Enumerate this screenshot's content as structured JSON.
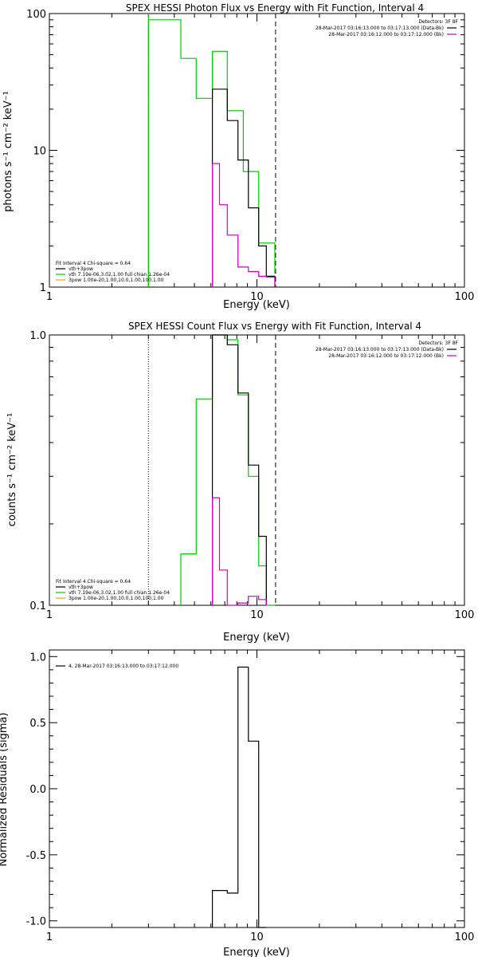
{
  "chart_data": [
    {
      "type": "line",
      "title": "SPEX HESSI Photon Flux vs Energy with Fit Function, Interval 4",
      "xlabel": "Energy (keV)",
      "ylabel": "photons s⁻¹ cm⁻² keV⁻¹",
      "xscale": "log",
      "yscale": "log",
      "xlim": [
        1,
        100
      ],
      "ylim": [
        1,
        100
      ],
      "x_ticks": [
        {
          "value": 1,
          "label": "1"
        },
        {
          "value": 10,
          "label": "10"
        },
        {
          "value": 100,
          "label": "100"
        }
      ],
      "y_ticks": [
        {
          "value": 1,
          "label": "1"
        },
        {
          "value": 10,
          "label": "10"
        },
        {
          "value": 100,
          "label": "100"
        }
      ],
      "vlines": [
        {
          "x": 3,
          "style": "solid-green"
        },
        {
          "x": 12.3,
          "style": "dashed"
        }
      ],
      "legend_right": {
        "header": "Detectors: 3F 8F",
        "lines": [
          {
            "text": "28-Mar-2017 03:16:13.000 to 03:17:13.000 (Data-Bk)",
            "color": "#000000"
          },
          {
            "text": "28-Mar-2017 03:16:12.000 to 03:17:12.000 (Bk)",
            "color": "#cc00cc"
          }
        ]
      },
      "legend_left": {
        "header": "Fit Interval  4   Chi-square = 0.64",
        "lines": [
          {
            "text": "vth+3pow",
            "color": "#000000"
          },
          {
            "text": "vth 7.19e-06,3.02,1.00  full chian 1.26e-04",
            "color": "#00cc00"
          },
          {
            "text": "3pow 1.00e-20,1.00,10.0,1.00,100,1.00",
            "color": "#ff9900"
          }
        ]
      },
      "series": [
        {
          "color": "#00cc00",
          "edges": [
            3.0,
            3.6,
            4.3,
            5.1,
            6.1,
            7.2,
            8.6,
            10.2,
            12.2
          ],
          "values": [
            90,
            90,
            47,
            24,
            53,
            19.5,
            7.0,
            2.1,
            1.25
          ]
        },
        {
          "color": "#000000",
          "edges": [
            6.1,
            7.2,
            8.1,
            9.1,
            10.2,
            11.1,
            12.2
          ],
          "values": [
            28,
            16.5,
            8.5,
            3.8,
            2.0,
            1.2
          ]
        },
        {
          "color": "#cc00cc",
          "edges": [
            6.1,
            6.6,
            7.2,
            8.1,
            9.1,
            10.2,
            11.1,
            12.2
          ],
          "values": [
            8.0,
            4.0,
            2.4,
            1.4,
            1.3,
            1.2,
            1.18
          ]
        }
      ]
    },
    {
      "type": "line",
      "title": "SPEX HESSI Count Flux vs Energy with Fit Function, Interval 4",
      "xlabel": "Energy (keV)",
      "ylabel": "counts s⁻¹ cm⁻² keV⁻¹",
      "xscale": "log",
      "yscale": "log",
      "xlim": [
        1,
        100
      ],
      "ylim": [
        0.1,
        1.0
      ],
      "x_ticks": [
        {
          "value": 1,
          "label": "1"
        },
        {
          "value": 10,
          "label": "10"
        },
        {
          "value": 100,
          "label": "100"
        }
      ],
      "y_ticks": [
        {
          "value": 0.1,
          "label": "0.1"
        },
        {
          "value": 1.0,
          "label": "1.0"
        }
      ],
      "vlines": [
        {
          "x": 3,
          "style": "dotted"
        },
        {
          "x": 12.3,
          "style": "dashed"
        }
      ],
      "legend_right": {
        "header": "Detectors: 3F 8F",
        "lines": [
          {
            "text": "28-Mar-2017 03:16:13.000 to 03:17:13.000 (Data-Bk)",
            "color": "#000000"
          },
          {
            "text": "28-Mar-2017 03:16:12.000 to 03:17:12.000 (Bk)",
            "color": "#cc00cc"
          }
        ]
      },
      "legend_left": {
        "header": "Fit Interval  4   Chi-square = 0.64",
        "lines": [
          {
            "text": "vth+3pow",
            "color": "#000000"
          },
          {
            "text": "vth 7.19e-06,3.02,1.00  full chian 1.26e-04",
            "color": "#00cc00"
          },
          {
            "text": "3pow 1.00e-20,1.00,10.0,1.00,100,1.00",
            "color": "#ff9900"
          }
        ]
      },
      "series": [
        {
          "color": "#00cc00",
          "edges": [
            4.3,
            5.1,
            6.1,
            6.6,
            7.2,
            8.1,
            9.1,
            10.2,
            11.1,
            12.2
          ],
          "values": [
            0.155,
            0.58,
            1.0,
            1.0,
            0.96,
            0.6,
            0.3,
            0.14,
            0.1
          ]
        },
        {
          "color": "#000000",
          "edges": [
            6.1,
            7.2,
            8.1,
            9.1,
            10.2,
            11.1
          ],
          "values": [
            1.0,
            0.92,
            0.61,
            0.33,
            0.18
          ]
        },
        {
          "color": "#cc00cc",
          "edges": [
            6.1,
            6.6,
            7.2,
            8.1,
            9.1,
            10.2,
            11.1
          ],
          "values": [
            0.25,
            0.135,
            0.1,
            0.102,
            0.108,
            0.105
          ]
        }
      ]
    },
    {
      "type": "line",
      "title": "",
      "xlabel": "Energy (keV)",
      "ylabel": "Normalized Residuals (sigma)",
      "xscale": "log",
      "yscale": "linear",
      "xlim": [
        1,
        100
      ],
      "ylim": [
        -1.05,
        1.05
      ],
      "x_ticks": [
        {
          "value": 1,
          "label": "1"
        },
        {
          "value": 10,
          "label": "10"
        },
        {
          "value": 100,
          "label": "100"
        }
      ],
      "y_ticks": [
        {
          "value": 1.0,
          "label": "1.0"
        },
        {
          "value": 0.5,
          "label": "0.5"
        },
        {
          "value": 0.0,
          "label": "0.0"
        },
        {
          "value": -0.5,
          "label": "-0.5"
        },
        {
          "value": -1.0,
          "label": "-1.0"
        }
      ],
      "vlines": [],
      "legend_left": {
        "header": "",
        "lines": [
          {
            "text": "4, 28-Mar-2017 03:16:13.000 to 03:17:12.000",
            "color": "#000000"
          }
        ]
      },
      "series": [
        {
          "color": "#000000",
          "edges": [
            6.1,
            7.2,
            8.1,
            9.1,
            10.2,
            11.1
          ],
          "values": [
            -0.77,
            -0.79,
            0.92,
            0.36,
            -1.05
          ]
        }
      ]
    }
  ]
}
